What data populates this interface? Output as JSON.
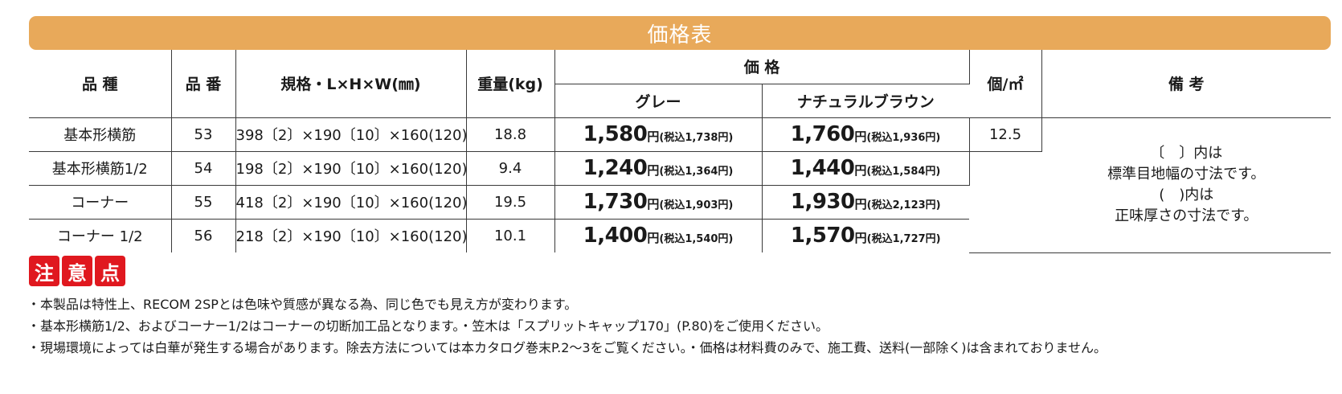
{
  "title": "価格表",
  "headers": {
    "name": "品 種",
    "code": "品 番",
    "spec": "規格・L×H×W(㎜)",
    "weight": "重量(kg)",
    "price": "価 格",
    "price_grey": "グレー",
    "price_brown": "ナチュラルブラウン",
    "per_m2": "個/㎡",
    "remarks": "備 考"
  },
  "rows": [
    {
      "name": "基本形横筋",
      "code": "53",
      "spec": "398〔2〕×190〔10〕×160(120)",
      "weight": "18.8",
      "grey_price": "1,580",
      "grey_tax": "(税込1,738円)",
      "brown_price": "1,760",
      "brown_tax": "(税込1,936円)"
    },
    {
      "name": "基本形横筋1/2",
      "code": "54",
      "spec": "198〔2〕×190〔10〕×160(120)",
      "weight": "9.4",
      "grey_price": "1,240",
      "grey_tax": "(税込1,364円)",
      "brown_price": "1,440",
      "brown_tax": "(税込1,584円)"
    },
    {
      "name": "コーナー",
      "code": "55",
      "spec": "418〔2〕×190〔10〕×160(120)",
      "weight": "19.5",
      "grey_price": "1,730",
      "grey_tax": "(税込1,903円)",
      "brown_price": "1,930",
      "brown_tax": "(税込2,123円)"
    },
    {
      "name": "コーナー 1/2",
      "code": "56",
      "spec": "218〔2〕×190〔10〕×160(120)",
      "weight": "10.1",
      "grey_price": "1,400",
      "grey_tax": "(税込1,540円)",
      "brown_price": "1,570",
      "brown_tax": "(税込1,727円)"
    }
  ],
  "yen": "円",
  "per_m2_value": "12.5",
  "remarks_lines": [
    "〔　〕内は",
    "標準目地幅の寸法です。",
    "(　)内は",
    "正味厚さの寸法です。"
  ],
  "caution_chars": [
    "注",
    "意",
    "点"
  ],
  "notes": [
    "・本製品は特性上、RECOM 2SPとは色味や質感が異なる為、同じ色でも見え方が変わります。",
    "・基本形横筋1/2、およびコーナー1/2はコーナーの切断加工品となります。・笠木は「スプリットキャップ170」(P.80)をご使用ください。",
    "・現場環境によっては白華が発生する場合があります。除去方法については本カタログ巻末P.2～3をご覧ください。・価格は材料費のみで、施工費、送料(一部除く)は含まれておりません。"
  ]
}
